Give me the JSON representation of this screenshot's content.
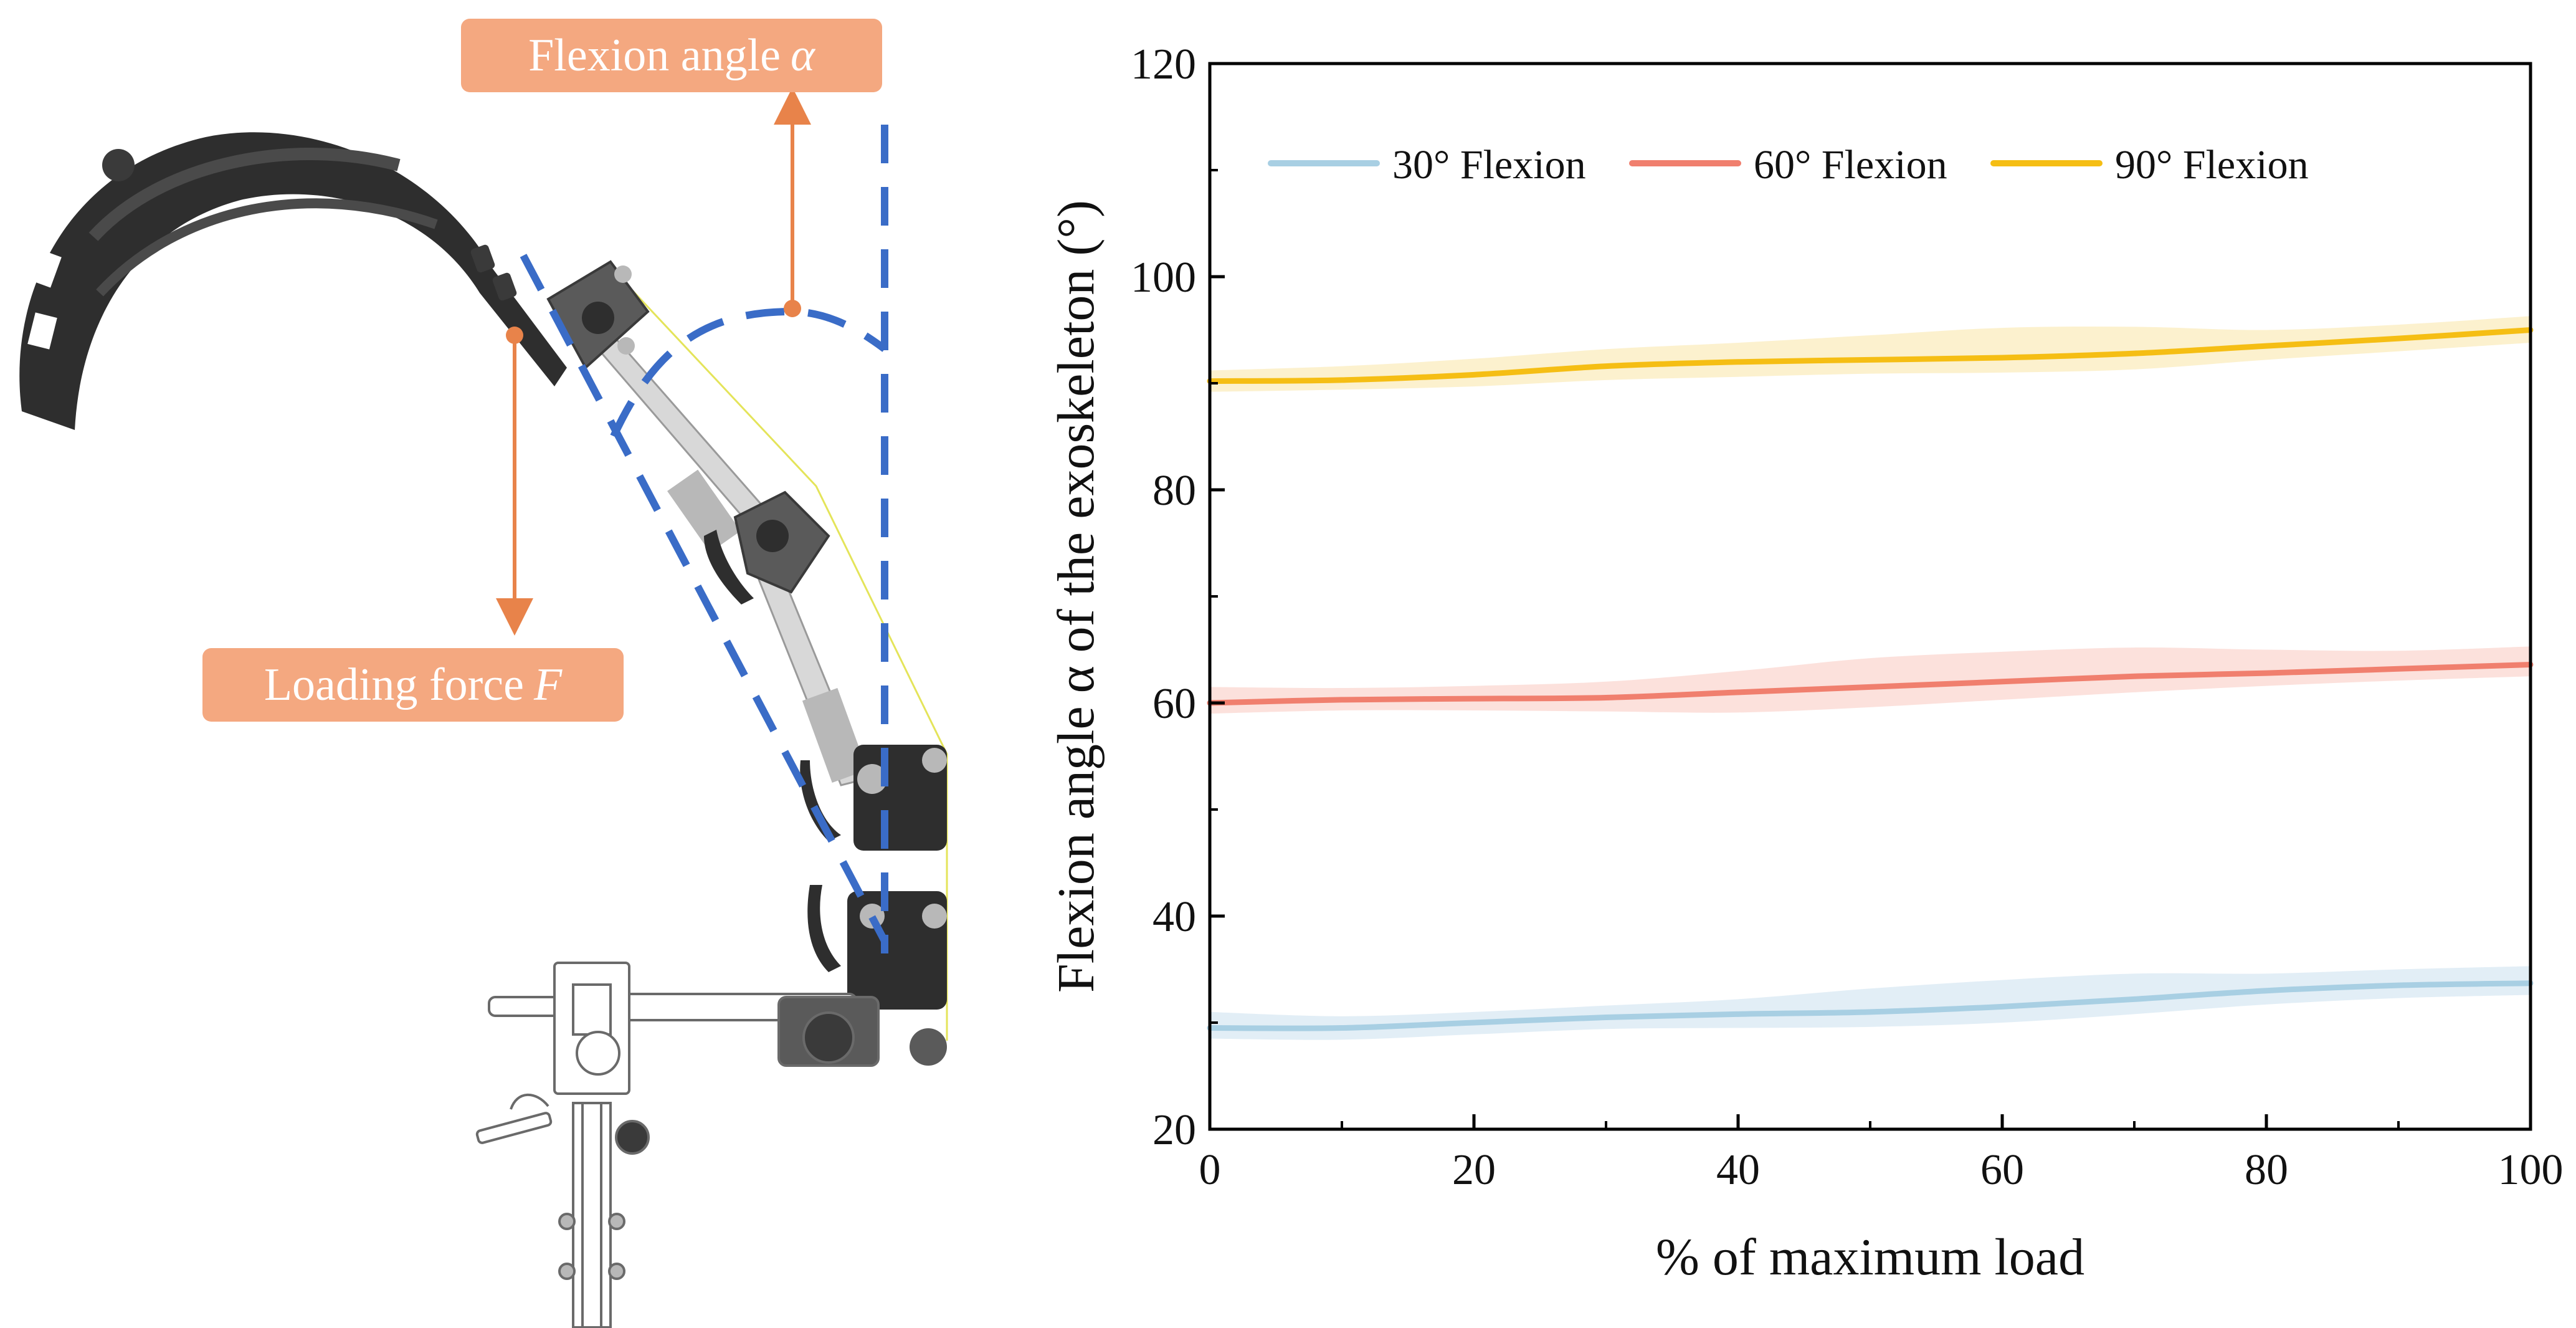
{
  "diagram": {
    "flexion_label": "Flexion angle",
    "flexion_symbol": "α",
    "force_label": "Loading force",
    "force_symbol": "F"
  },
  "colors": {
    "arrow": "#E8834A",
    "callout": "#F4A880",
    "dashed": "#3A6CC7",
    "device_dark": "#2E2E2E",
    "device_mid": "#5A5A5A",
    "device_light": "#B8B8B8",
    "outline": "#E4E45A"
  },
  "chart_data": {
    "type": "line",
    "title": "",
    "xlabel": "% of maximum load",
    "ylabel": "Flexion angle α of  the exoskeleton (°)",
    "xlim": [
      0,
      100
    ],
    "ylim": [
      20,
      120
    ],
    "xticks": [
      0,
      20,
      40,
      60,
      80,
      100
    ],
    "yticks": [
      20,
      40,
      60,
      80,
      100,
      120
    ],
    "grid": false,
    "legend": "top-left",
    "x": [
      0,
      10,
      20,
      30,
      40,
      50,
      60,
      70,
      80,
      90,
      100
    ],
    "series": [
      {
        "name": "30° Flexion",
        "color": "#A8CFE3",
        "band_color": "#DDEBF4",
        "values": [
          29.5,
          29.5,
          30.0,
          30.5,
          30.8,
          31.0,
          31.5,
          32.2,
          33.0,
          33.5,
          33.7
        ],
        "lower": [
          28.5,
          28.4,
          28.9,
          29.4,
          29.5,
          29.6,
          30.0,
          30.8,
          31.7,
          32.3,
          32.6
        ],
        "upper": [
          31.0,
          30.6,
          31.0,
          31.6,
          32.2,
          33.2,
          34.0,
          34.6,
          34.6,
          35.0,
          35.3
        ]
      },
      {
        "name": "60° Flexion",
        "color": "#F07F6E",
        "band_color": "#FBDCD6",
        "values": [
          60.0,
          60.3,
          60.4,
          60.5,
          61.0,
          61.5,
          62.0,
          62.5,
          62.8,
          63.2,
          63.6
        ],
        "lower": [
          59.0,
          59.3,
          59.3,
          59.2,
          59.1,
          59.6,
          60.3,
          61.0,
          61.6,
          62.1,
          62.5
        ],
        "upper": [
          61.5,
          61.4,
          61.6,
          62.0,
          63.0,
          64.2,
          64.8,
          65.2,
          65.0,
          64.9,
          65.3
        ]
      },
      {
        "name": "90° Flexion",
        "color": "#F5BE14",
        "band_color": "#FBEEC6",
        "values": [
          90.2,
          90.3,
          90.8,
          91.6,
          92.0,
          92.2,
          92.4,
          92.8,
          93.5,
          94.2,
          95.0
        ],
        "lower": [
          89.2,
          89.4,
          89.7,
          90.3,
          90.6,
          90.9,
          91.0,
          91.3,
          92.2,
          93.0,
          93.8
        ],
        "upper": [
          91.2,
          91.6,
          92.3,
          93.2,
          93.8,
          94.5,
          95.2,
          95.3,
          95.0,
          95.5,
          96.3
        ]
      }
    ]
  }
}
